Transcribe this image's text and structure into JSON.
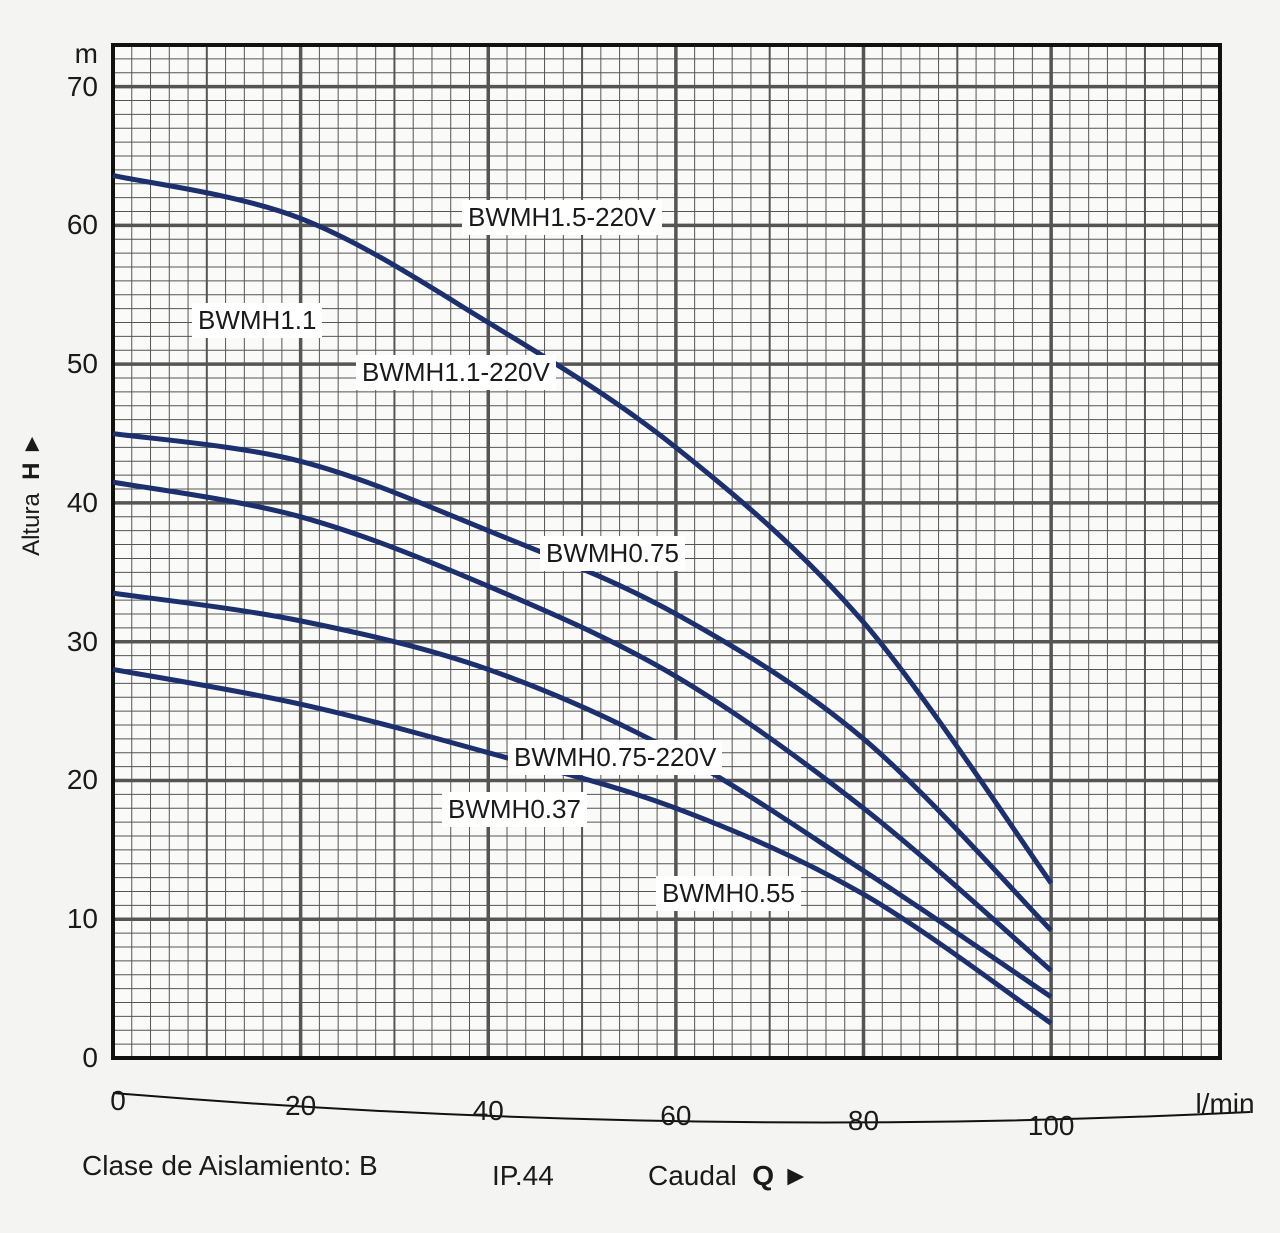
{
  "chart_data": {
    "type": "line",
    "title": "",
    "xlabel": "Caudal Q",
    "xunit": "l/min",
    "ylabel": "Altura H",
    "yunit": "m",
    "xlim": [
      0,
      118
    ],
    "ylim": [
      0,
      73
    ],
    "grid": true,
    "x_ticks": [
      "0",
      "20",
      "40",
      "60",
      "80",
      "100"
    ],
    "y_ticks": [
      "0",
      "10",
      "20",
      "30",
      "40",
      "50",
      "60",
      "70"
    ],
    "x": [
      0,
      20,
      40,
      60,
      80,
      100
    ],
    "series": [
      {
        "name": "BWMH1.5-220V",
        "values": [
          63.6,
          60.5,
          53,
          44,
          31.4,
          12.6
        ]
      },
      {
        "name": "BWMH1.1",
        "values": [
          45,
          43,
          38,
          32,
          23,
          9.2
        ]
      },
      {
        "name": "BWMH1.1-220V / BWMH0.75",
        "values": [
          41.5,
          39,
          34,
          27.5,
          18,
          6.3
        ]
      },
      {
        "name": "BWMH0.75-220V / BWMH0.55",
        "values": [
          33.5,
          31.5,
          28,
          22,
          13.5,
          4.4
        ]
      },
      {
        "name": "BWMH0.37",
        "values": [
          28,
          25.5,
          22,
          18,
          11.8,
          2.5
        ]
      }
    ],
    "annotations": [
      "BWMH1.5-220V",
      "BWMH1.1",
      "BWMH1.1-220V",
      "BWMH0.75",
      "BWMH0.75-220V",
      "BWMH0.37",
      "BWMH0.55"
    ]
  },
  "footer": {
    "insulation": "Clase de Aislamiento: B",
    "ip": "IP.44",
    "flow": "Caudal",
    "flow_symbol": "Q ►",
    "height_axis": "Altura",
    "height_symbol": "H ►",
    "y_unit": "m",
    "x_unit": "l/min"
  },
  "colors": {
    "curve": "#1c2f6e",
    "grid": "#555555"
  }
}
